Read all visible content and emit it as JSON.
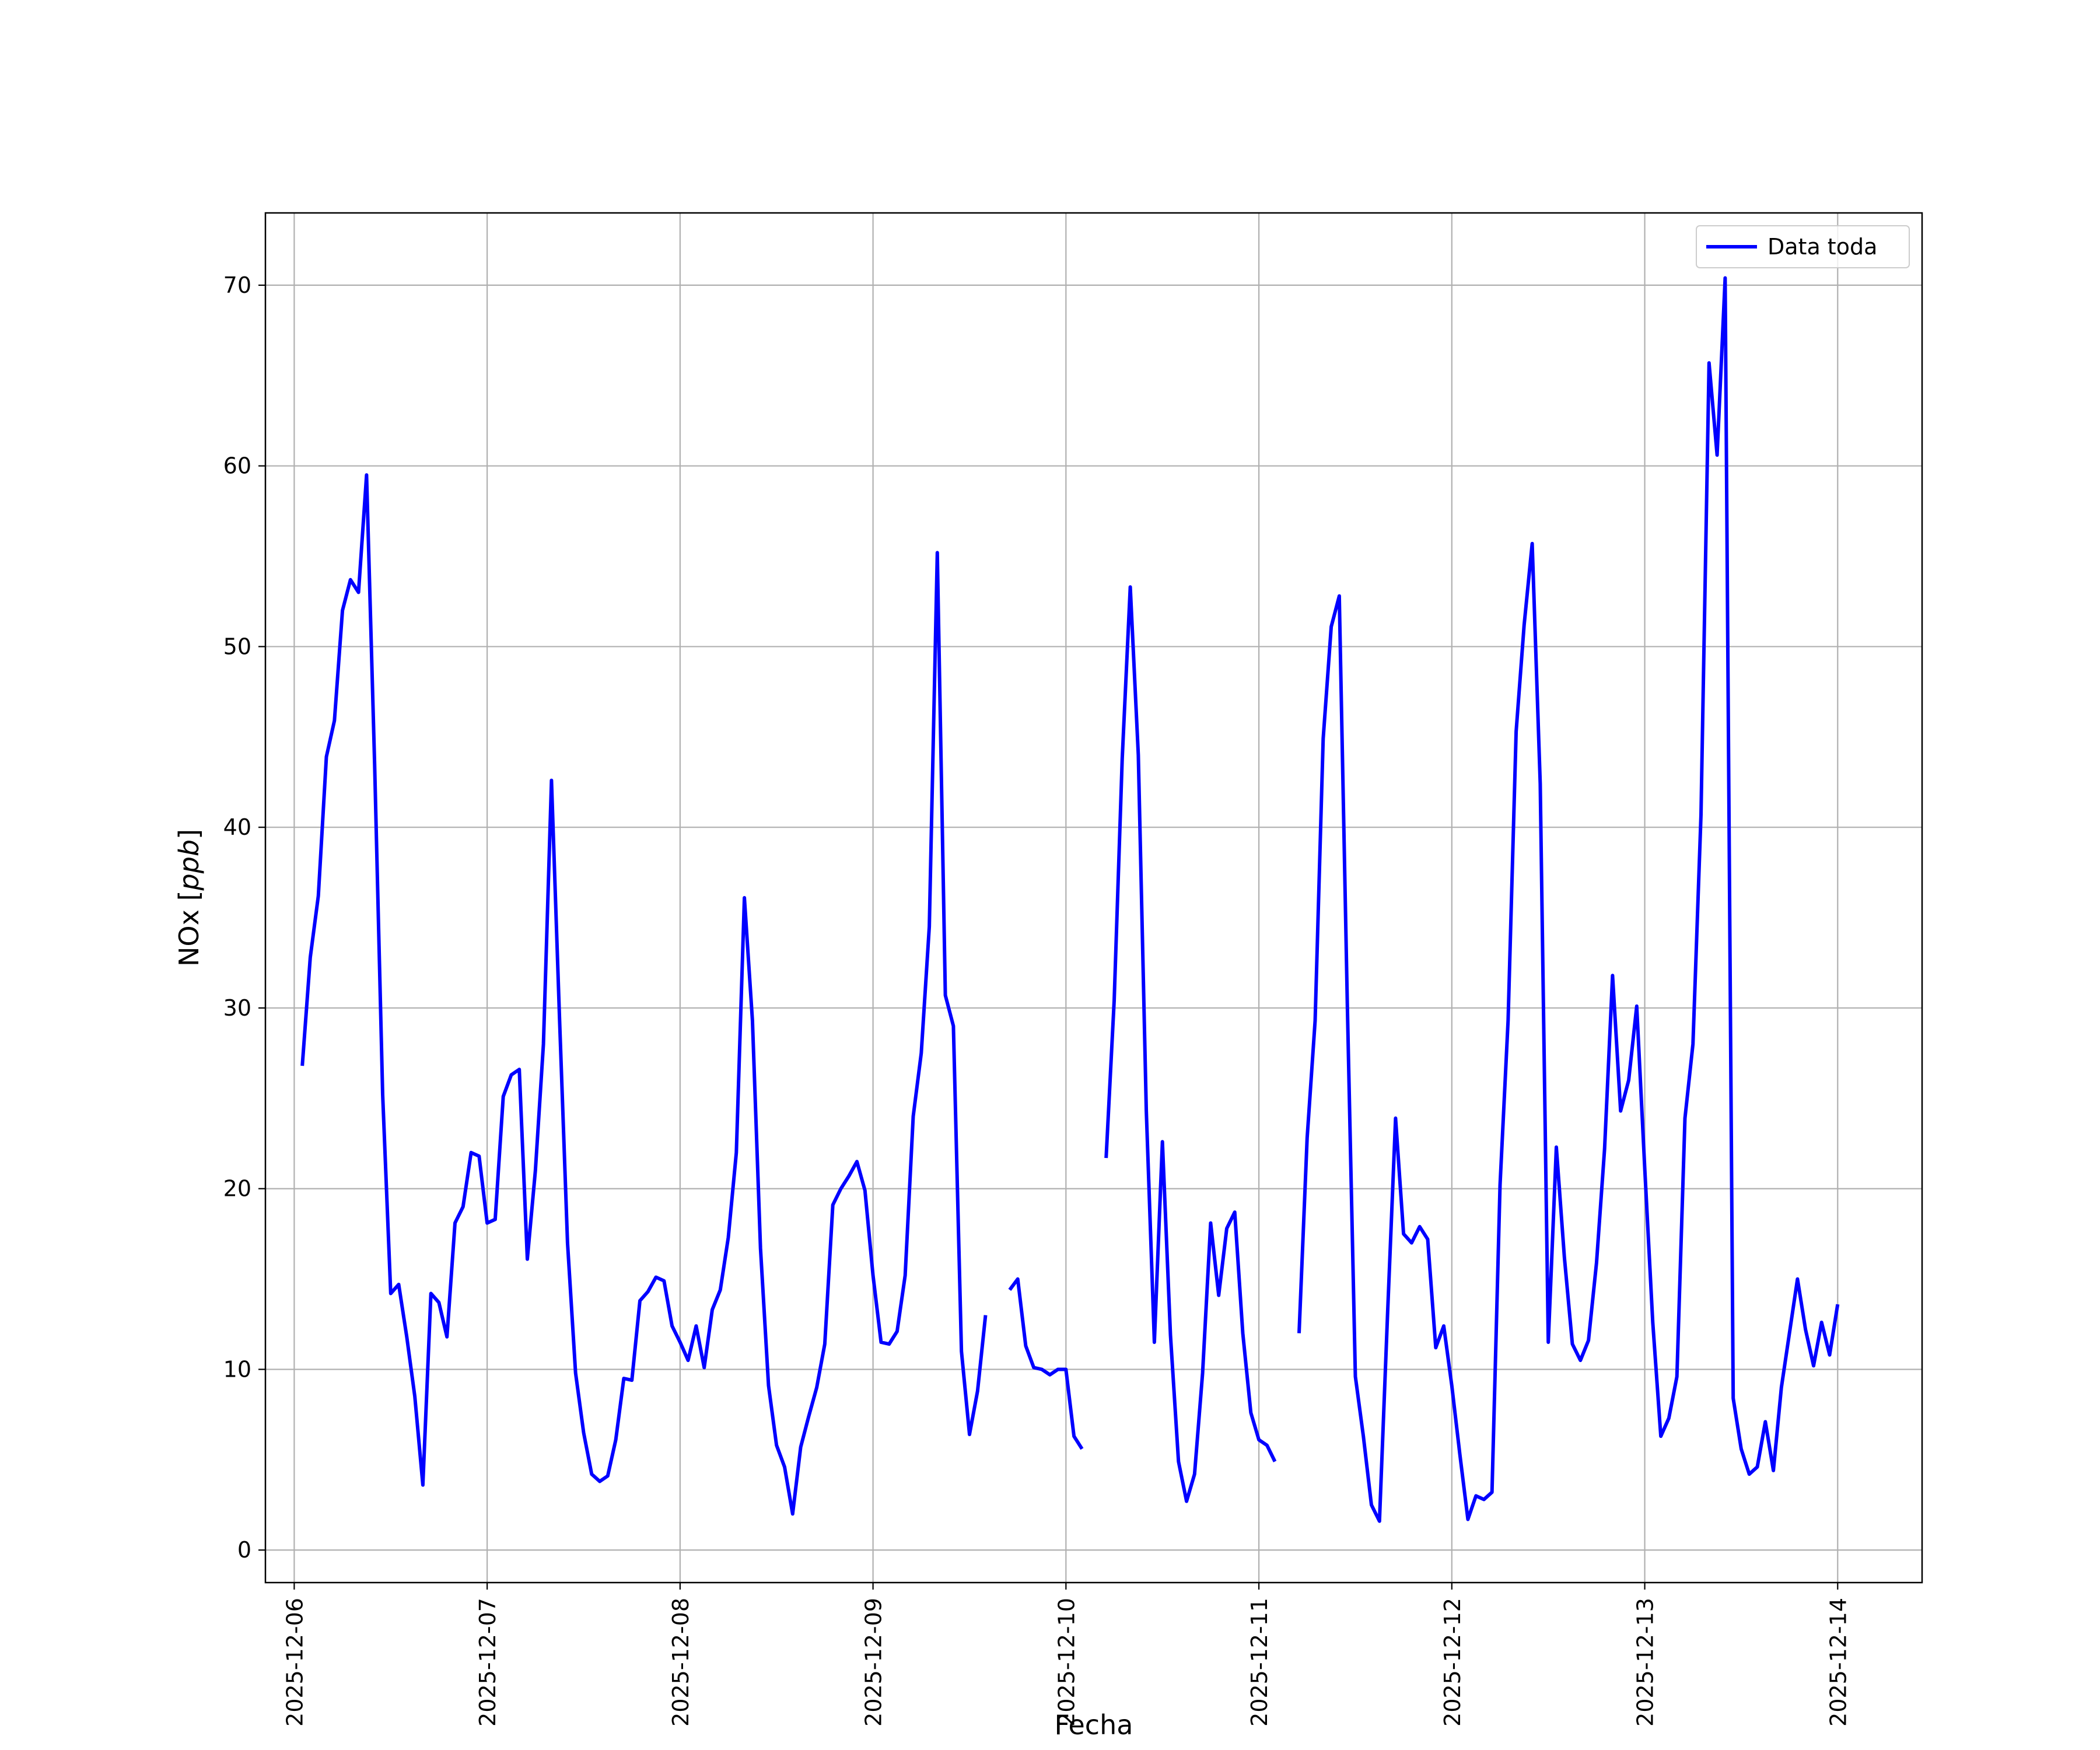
{
  "chart_data": {
    "type": "line",
    "title": "",
    "xlabel": "Fecha",
    "ylabel": "NOx [ppb]",
    "ylabel_parts": {
      "plain": "NOx ",
      "open": "[",
      "math": "ppb",
      "close": "]"
    },
    "grid": true,
    "legend_position": "top-right",
    "xlim": [
      "2025-12-05T20:25",
      "2025-12-14T10:30"
    ],
    "ylim": [
      -1.8,
      74
    ],
    "x_ticks": [
      "2025-12-06",
      "2025-12-07",
      "2025-12-08",
      "2025-12-09",
      "2025-12-10",
      "2025-12-11",
      "2025-12-12",
      "2025-12-13",
      "2025-12-14"
    ],
    "y_ticks": [
      0,
      10,
      20,
      30,
      40,
      50,
      60,
      70
    ],
    "series": [
      {
        "name": "Data toda",
        "color": "#0000ff",
        "segments": [
          [
            [
              "2025-12-06T01:00",
              26.8
            ],
            [
              "2025-12-06T02:00",
              32.8
            ],
            [
              "2025-12-06T03:00",
              36.2
            ],
            [
              "2025-12-06T04:00",
              43.9
            ],
            [
              "2025-12-06T05:00",
              45.9
            ],
            [
              "2025-12-06T06:00",
              52.0
            ],
            [
              "2025-12-06T07:00",
              53.7
            ],
            [
              "2025-12-06T08:00",
              53.0
            ],
            [
              "2025-12-06T09:00",
              59.5
            ],
            [
              "2025-12-06T10:00",
              43.5
            ],
            [
              "2025-12-06T11:00",
              25.2
            ],
            [
              "2025-12-06T12:00",
              14.2
            ],
            [
              "2025-12-06T13:00",
              14.7
            ],
            [
              "2025-12-06T14:00",
              11.8
            ],
            [
              "2025-12-06T15:00",
              8.5
            ],
            [
              "2025-12-06T16:00",
              3.6
            ],
            [
              "2025-12-06T17:00",
              14.2
            ],
            [
              "2025-12-06T18:00",
              13.7
            ],
            [
              "2025-12-06T19:00",
              11.8
            ],
            [
              "2025-12-06T20:00",
              18.1
            ],
            [
              "2025-12-06T21:00",
              19.0
            ],
            [
              "2025-12-06T22:00",
              22.0
            ],
            [
              "2025-12-06T23:00",
              21.8
            ],
            [
              "2025-12-07T00:00",
              18.1
            ],
            [
              "2025-12-07T01:00",
              18.3
            ],
            [
              "2025-12-07T02:00",
              25.1
            ],
            [
              "2025-12-07T03:00",
              26.3
            ],
            [
              "2025-12-07T04:00",
              26.6
            ],
            [
              "2025-12-07T05:00",
              16.1
            ],
            [
              "2025-12-07T06:00",
              21.0
            ],
            [
              "2025-12-07T07:00",
              28.0
            ],
            [
              "2025-12-07T08:00",
              42.6
            ],
            [
              "2025-12-07T09:00",
              29.5
            ],
            [
              "2025-12-07T10:00",
              17.0
            ],
            [
              "2025-12-07T11:00",
              9.8
            ],
            [
              "2025-12-07T12:00",
              6.5
            ],
            [
              "2025-12-07T13:00",
              4.2
            ],
            [
              "2025-12-07T14:00",
              3.8
            ],
            [
              "2025-12-07T15:00",
              4.1
            ],
            [
              "2025-12-07T16:00",
              6.1
            ],
            [
              "2025-12-07T17:00",
              9.5
            ],
            [
              "2025-12-07T18:00",
              9.4
            ],
            [
              "2025-12-07T19:00",
              13.8
            ],
            [
              "2025-12-07T20:00",
              14.3
            ],
            [
              "2025-12-07T21:00",
              15.1
            ],
            [
              "2025-12-07T22:00",
              14.9
            ],
            [
              "2025-12-07T23:00",
              12.4
            ],
            [
              "2025-12-08T00:00",
              11.5
            ],
            [
              "2025-12-08T01:00",
              10.5
            ],
            [
              "2025-12-08T02:00",
              12.4
            ],
            [
              "2025-12-08T03:00",
              10.1
            ],
            [
              "2025-12-08T04:00",
              13.3
            ],
            [
              "2025-12-08T05:00",
              14.4
            ],
            [
              "2025-12-08T06:00",
              17.3
            ],
            [
              "2025-12-08T07:00",
              22.0
            ],
            [
              "2025-12-08T08:00",
              36.1
            ],
            [
              "2025-12-08T09:00",
              29.3
            ],
            [
              "2025-12-08T10:00",
              16.7
            ],
            [
              "2025-12-08T11:00",
              9.1
            ],
            [
              "2025-12-08T12:00",
              5.8
            ],
            [
              "2025-12-08T13:00",
              4.6
            ],
            [
              "2025-12-08T14:00",
              2.0
            ],
            [
              "2025-12-08T15:00",
              5.7
            ],
            [
              "2025-12-08T16:00",
              7.4
            ],
            [
              "2025-12-08T17:00",
              9.0
            ],
            [
              "2025-12-08T18:00",
              11.4
            ],
            [
              "2025-12-08T19:00",
              19.1
            ],
            [
              "2025-12-08T20:00",
              20.0
            ],
            [
              "2025-12-08T21:00",
              20.7
            ],
            [
              "2025-12-08T22:00",
              21.5
            ],
            [
              "2025-12-08T23:00",
              19.9
            ],
            [
              "2025-12-09T00:00",
              15.2
            ],
            [
              "2025-12-09T01:00",
              11.5
            ],
            [
              "2025-12-09T02:00",
              11.4
            ],
            [
              "2025-12-09T03:00",
              12.1
            ],
            [
              "2025-12-09T04:00",
              15.2
            ],
            [
              "2025-12-09T05:00",
              24.0
            ],
            [
              "2025-12-09T06:00",
              27.5
            ],
            [
              "2025-12-09T07:00",
              34.5
            ],
            [
              "2025-12-09T08:00",
              55.2
            ],
            [
              "2025-12-09T09:00",
              30.7
            ],
            [
              "2025-12-09T10:00",
              29.0
            ],
            [
              "2025-12-09T11:00",
              11.0
            ],
            [
              "2025-12-09T12:00",
              6.4
            ],
            [
              "2025-12-09T13:00",
              8.8
            ],
            [
              "2025-12-09T14:00",
              13.0
            ]
          ],
          [
            [
              "2025-12-09T17:00",
              14.4
            ],
            [
              "2025-12-09T18:00",
              15.0
            ],
            [
              "2025-12-09T19:00",
              11.3
            ],
            [
              "2025-12-09T20:00",
              10.1
            ],
            [
              "2025-12-09T21:00",
              10.0
            ],
            [
              "2025-12-09T22:00",
              9.7
            ],
            [
              "2025-12-09T23:00",
              10.0
            ],
            [
              "2025-12-10T00:00",
              10.0
            ],
            [
              "2025-12-10T01:00",
              6.3
            ],
            [
              "2025-12-10T02:00",
              5.6
            ]
          ],
          [
            [
              "2025-12-10T05:00",
              21.7
            ],
            [
              "2025-12-10T06:00",
              30.4
            ],
            [
              "2025-12-10T07:00",
              43.8
            ],
            [
              "2025-12-10T08:00",
              53.3
            ],
            [
              "2025-12-10T09:00",
              44.0
            ],
            [
              "2025-12-10T10:00",
              24.3
            ],
            [
              "2025-12-10T11:00",
              11.5
            ],
            [
              "2025-12-10T12:00",
              22.6
            ],
            [
              "2025-12-10T13:00",
              11.9
            ],
            [
              "2025-12-10T14:00",
              4.9
            ],
            [
              "2025-12-10T15:00",
              2.7
            ],
            [
              "2025-12-10T16:00",
              4.2
            ],
            [
              "2025-12-10T17:00",
              9.8
            ],
            [
              "2025-12-10T18:00",
              18.1
            ],
            [
              "2025-12-10T19:00",
              14.1
            ],
            [
              "2025-12-10T20:00",
              17.8
            ],
            [
              "2025-12-10T21:00",
              18.7
            ],
            [
              "2025-12-10T22:00",
              12.0
            ],
            [
              "2025-12-10T23:00",
              7.6
            ],
            [
              "2025-12-11T00:00",
              6.1
            ],
            [
              "2025-12-11T01:00",
              5.8
            ],
            [
              "2025-12-11T02:00",
              4.9
            ]
          ],
          [
            [
              "2025-12-11T05:00",
              12.0
            ],
            [
              "2025-12-11T06:00",
              22.8
            ],
            [
              "2025-12-11T07:00",
              29.3
            ],
            [
              "2025-12-11T08:00",
              44.9
            ],
            [
              "2025-12-11T09:00",
              51.1
            ],
            [
              "2025-12-11T10:00",
              52.8
            ],
            [
              "2025-12-11T11:00",
              30.2
            ],
            [
              "2025-12-11T12:00",
              9.6
            ],
            [
              "2025-12-11T13:00",
              6.3
            ],
            [
              "2025-12-11T14:00",
              2.5
            ],
            [
              "2025-12-11T15:00",
              1.6
            ],
            [
              "2025-12-11T16:00",
              13.0
            ],
            [
              "2025-12-11T17:00",
              23.9
            ],
            [
              "2025-12-11T18:00",
              17.5
            ],
            [
              "2025-12-11T19:00",
              17.0
            ],
            [
              "2025-12-11T20:00",
              17.9
            ],
            [
              "2025-12-11T21:00",
              17.2
            ],
            [
              "2025-12-11T22:00",
              11.2
            ],
            [
              "2025-12-11T23:00",
              12.4
            ],
            [
              "2025-12-12T00:00",
              9.1
            ],
            [
              "2025-12-12T01:00",
              5.3
            ],
            [
              "2025-12-12T02:00",
              1.7
            ],
            [
              "2025-12-12T03:00",
              3.0
            ],
            [
              "2025-12-12T04:00",
              2.8
            ],
            [
              "2025-12-12T05:00",
              3.2
            ],
            [
              "2025-12-12T06:00",
              20.2
            ],
            [
              "2025-12-12T07:00",
              29.3
            ],
            [
              "2025-12-12T08:00",
              45.3
            ],
            [
              "2025-12-12T09:00",
              51.2
            ],
            [
              "2025-12-12T10:00",
              55.7
            ],
            [
              "2025-12-12T11:00",
              42.4
            ],
            [
              "2025-12-12T12:00",
              11.5
            ],
            [
              "2025-12-12T13:00",
              22.3
            ],
            [
              "2025-12-12T14:00",
              16.2
            ],
            [
              "2025-12-12T15:00",
              11.4
            ],
            [
              "2025-12-12T16:00",
              10.5
            ],
            [
              "2025-12-12T17:00",
              11.6
            ],
            [
              "2025-12-12T18:00",
              15.9
            ],
            [
              "2025-12-12T19:00",
              22.2
            ],
            [
              "2025-12-12T20:00",
              31.8
            ],
            [
              "2025-12-12T21:00",
              24.3
            ],
            [
              "2025-12-12T22:00",
              26.0
            ],
            [
              "2025-12-12T23:00",
              30.1
            ],
            [
              "2025-12-13T00:00",
              21.1
            ],
            [
              "2025-12-13T01:00",
              12.6
            ],
            [
              "2025-12-13T02:00",
              6.3
            ],
            [
              "2025-12-13T03:00",
              7.3
            ],
            [
              "2025-12-13T04:00",
              9.6
            ],
            [
              "2025-12-13T05:00",
              23.9
            ],
            [
              "2025-12-13T06:00",
              28.0
            ],
            [
              "2025-12-13T07:00",
              40.7
            ],
            [
              "2025-12-13T08:00",
              65.7
            ],
            [
              "2025-12-13T09:00",
              60.6
            ],
            [
              "2025-12-13T10:00",
              70.4
            ],
            [
              "2025-12-13T11:00",
              8.4
            ],
            [
              "2025-12-13T12:00",
              5.6
            ],
            [
              "2025-12-13T13:00",
              4.2
            ],
            [
              "2025-12-13T14:00",
              4.6
            ],
            [
              "2025-12-13T15:00",
              7.1
            ],
            [
              "2025-12-13T16:00",
              4.4
            ],
            [
              "2025-12-13T17:00",
              9.0
            ],
            [
              "2025-12-13T18:00",
              12.0
            ],
            [
              "2025-12-13T19:00",
              15.0
            ],
            [
              "2025-12-13T20:00",
              12.2
            ],
            [
              "2025-12-13T21:00",
              10.2
            ],
            [
              "2025-12-13T22:00",
              12.6
            ],
            [
              "2025-12-13T23:00",
              10.8
            ],
            [
              "2025-12-14T00:00",
              13.6
            ]
          ]
        ]
      }
    ]
  }
}
